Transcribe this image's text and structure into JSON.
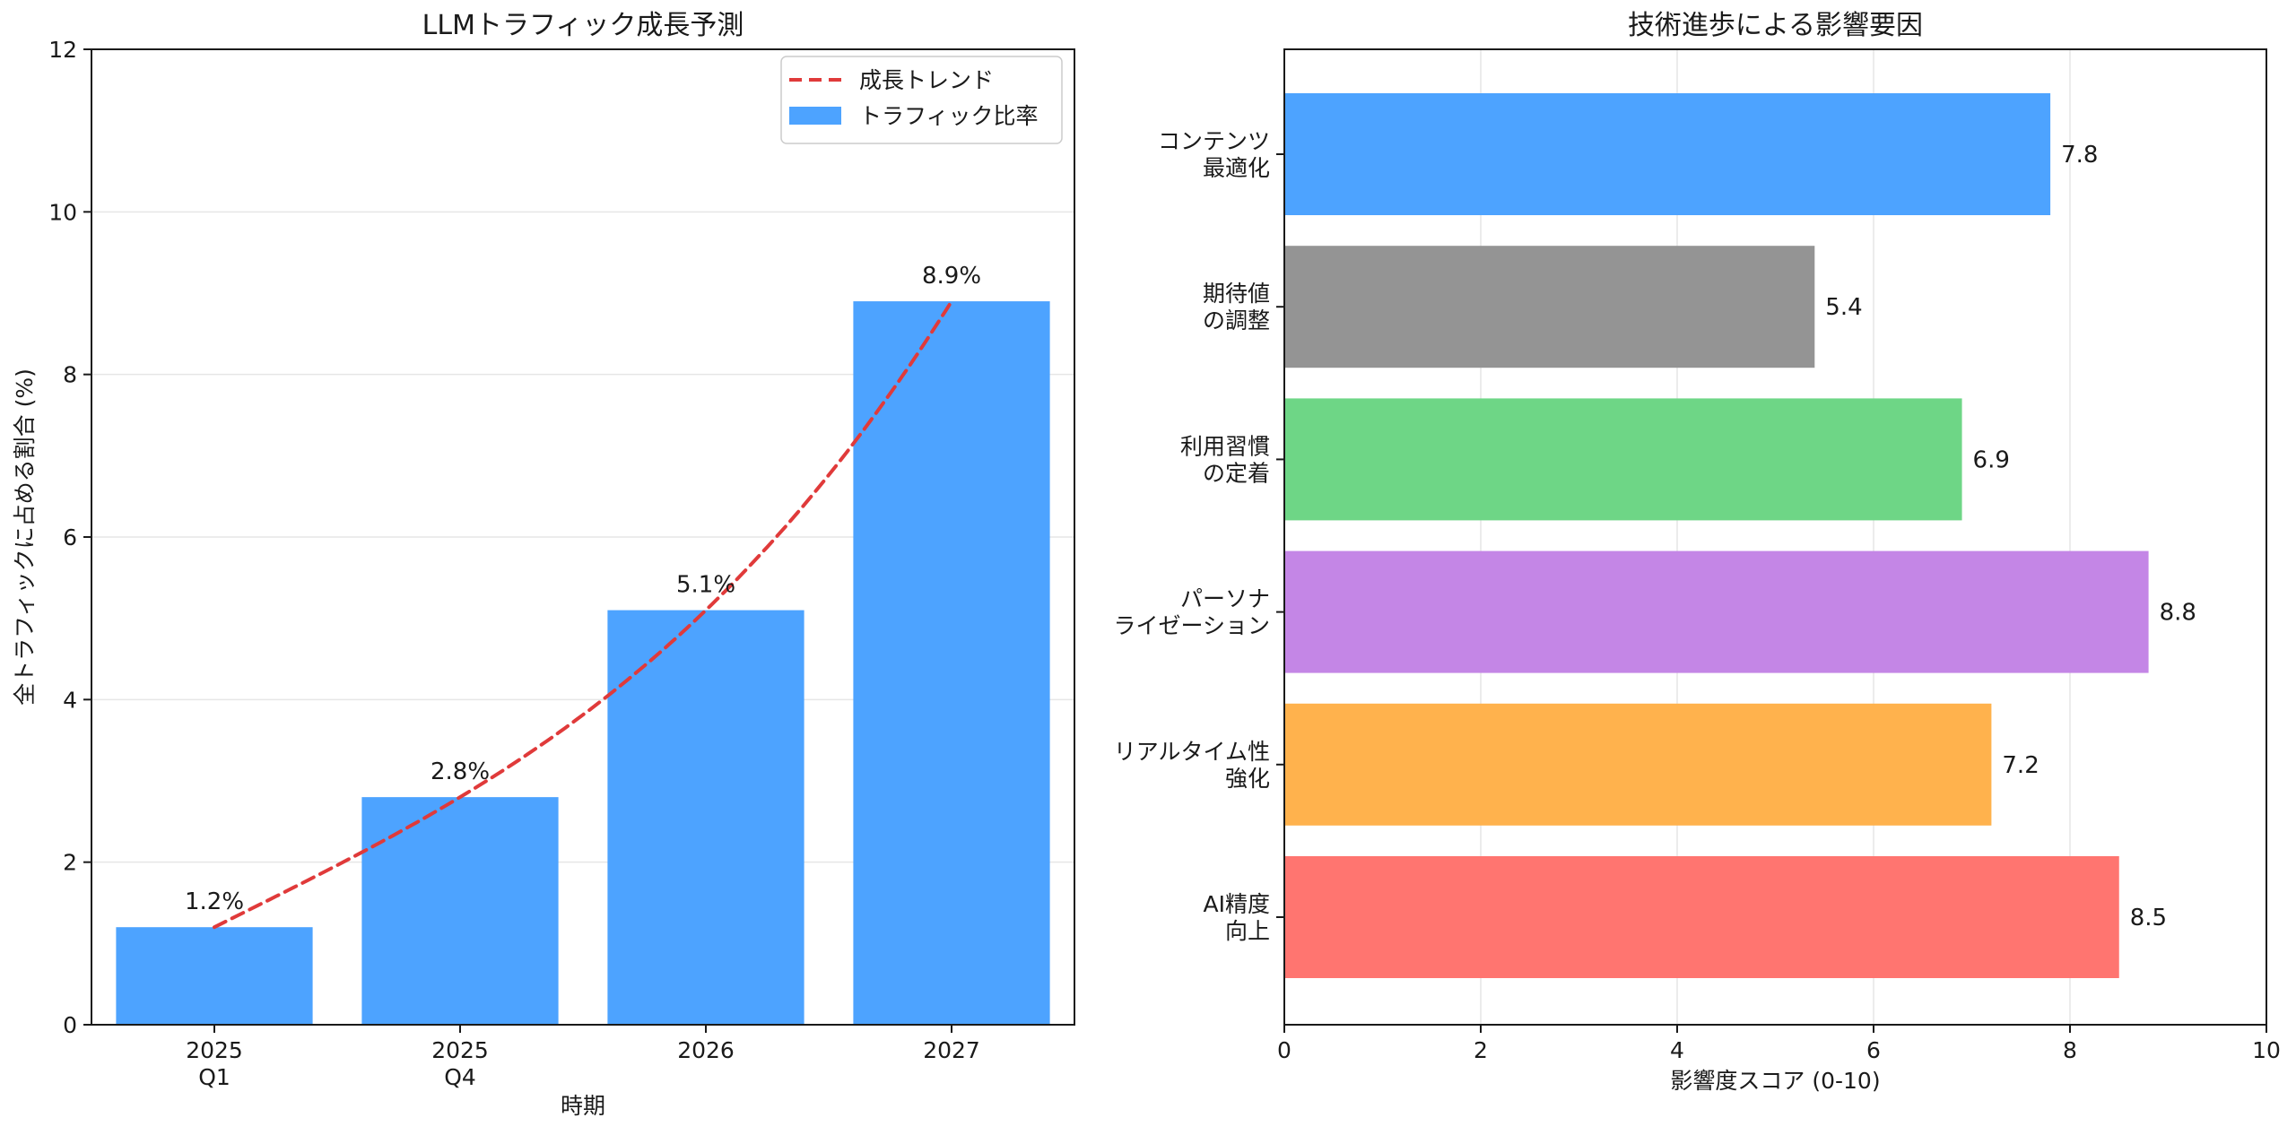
{
  "chart_data": [
    {
      "type": "bar",
      "title": "LLMトラフィック成長予測",
      "xlabel": "時期",
      "ylabel": "全トラフィックに占める割合 (%)",
      "ylim": [
        0,
        12
      ],
      "yticks": [
        "0",
        "2",
        "4",
        "6",
        "8",
        "10",
        "12"
      ],
      "grid": "y",
      "categories": [
        [
          "2025",
          "Q1"
        ],
        [
          "2025",
          "Q4"
        ],
        [
          "2026"
        ],
        [
          "2027"
        ]
      ],
      "series": [
        {
          "name": "トラフィック比率",
          "type": "bar",
          "color": "#4da3ff",
          "values": [
            1.2,
            2.8,
            5.1,
            8.9
          ],
          "labels": [
            "1.2%",
            "2.8%",
            "5.1%",
            "8.9%"
          ]
        },
        {
          "name": "成長トレンド",
          "type": "line",
          "style": "dashed",
          "color": "#e03a3a",
          "values": [
            1.2,
            2.8,
            5.1,
            8.9
          ]
        }
      ],
      "legend": "top-right"
    },
    {
      "type": "barh",
      "title": "技術進歩による影響要因",
      "xlabel": "影響度スコア (0-10)",
      "xlim": [
        0,
        10
      ],
      "xticks": [
        "0",
        "2",
        "4",
        "6",
        "8",
        "10"
      ],
      "grid": "x",
      "categories": [
        [
          "AI精度",
          "向上"
        ],
        [
          "リアルタイム性",
          "強化"
        ],
        [
          "パーソナ",
          "ライゼーション"
        ],
        [
          "利用習慣",
          "の定着"
        ],
        [
          "期待値",
          "の調整"
        ],
        [
          "コンテンツ",
          "最適化"
        ]
      ],
      "values": [
        8.5,
        7.2,
        8.8,
        6.9,
        5.4,
        7.8
      ],
      "labels": [
        "8.5",
        "7.2",
        "8.8",
        "6.9",
        "5.4",
        "7.8"
      ],
      "colors": [
        "#ff7570",
        "#ffb24d",
        "#c486e6",
        "#6ed686",
        "#949494",
        "#4da3ff"
      ]
    }
  ]
}
